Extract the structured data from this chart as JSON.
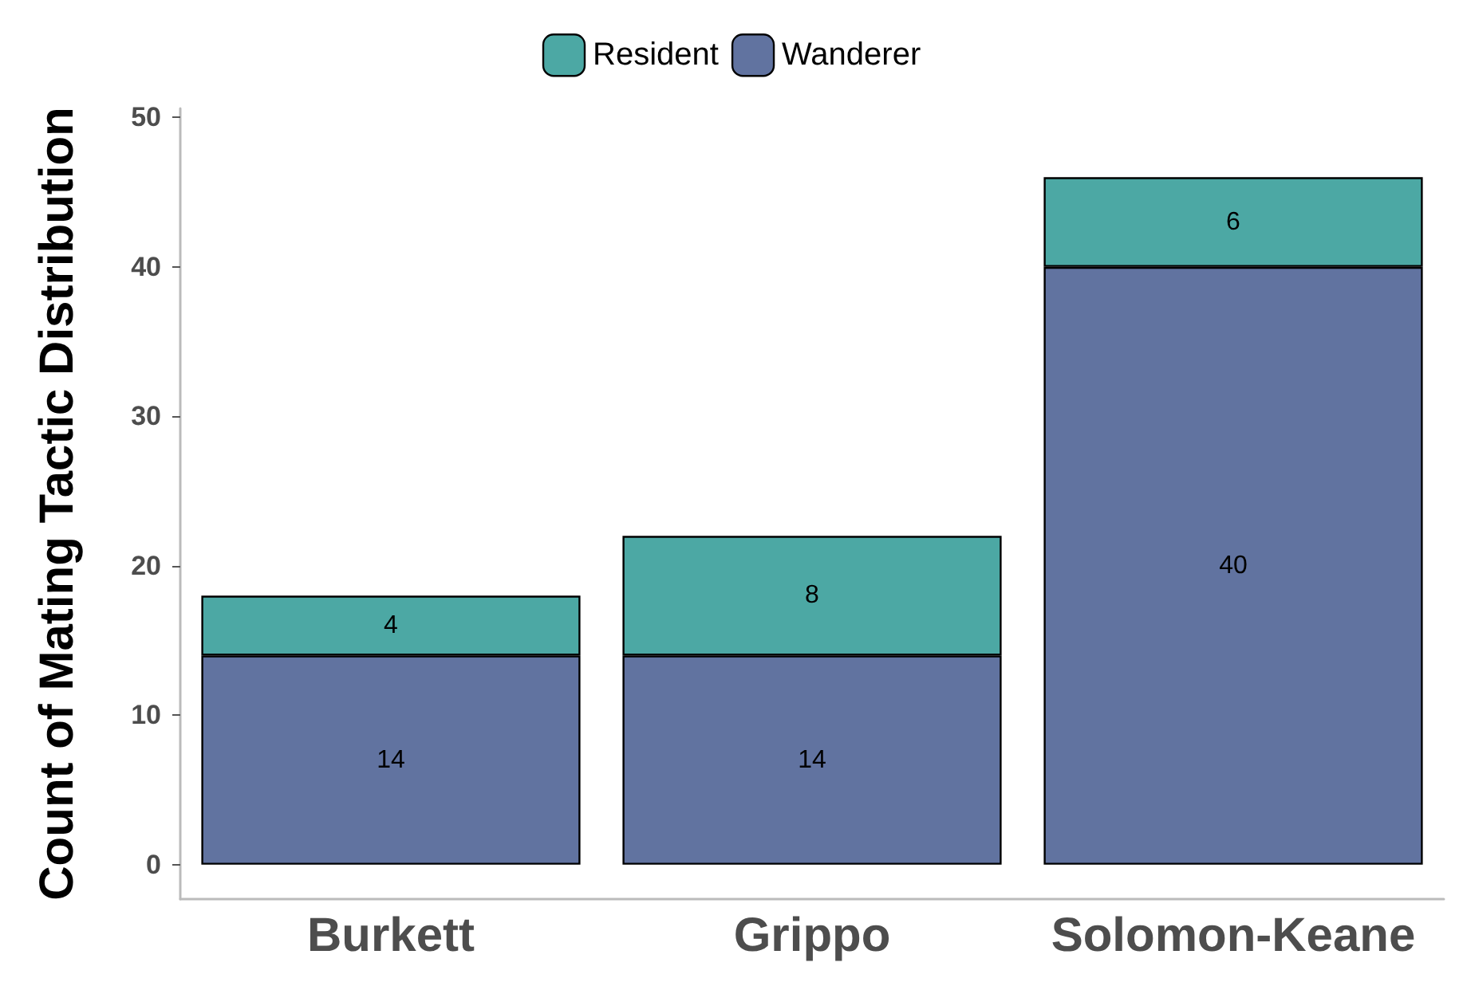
{
  "chart_data": {
    "type": "bar",
    "stacked": true,
    "ylabel": "Count of Mating Tactic Distribution",
    "categories": [
      "Burkett",
      "Grippo",
      "Solomon-Keane"
    ],
    "series": [
      {
        "name": "Wanderer",
        "color": "#6173a0",
        "values": [
          14,
          14,
          40
        ]
      },
      {
        "name": "Resident",
        "color": "#4ca8a4",
        "values": [
          4,
          8,
          6
        ]
      }
    ],
    "ylim": [
      -2.3,
      50.6
    ],
    "yticks": [
      0,
      10,
      20,
      30,
      40,
      50
    ],
    "data_labels": true,
    "grid": false,
    "legend": "top"
  }
}
